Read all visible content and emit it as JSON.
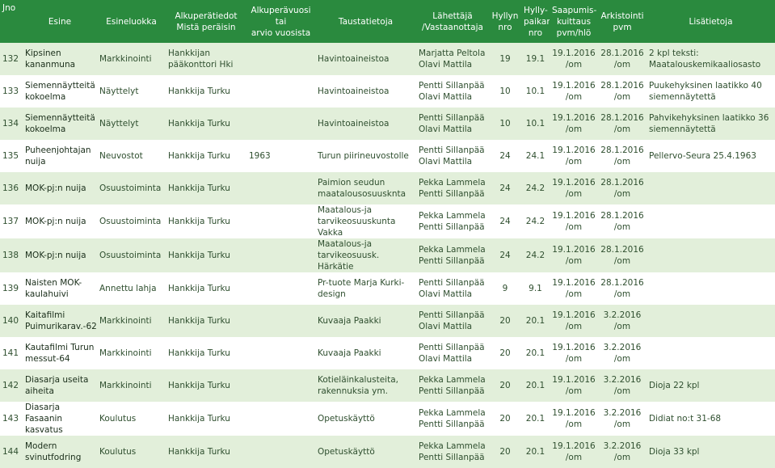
{
  "table": {
    "header": [
      "Jno",
      "Esine",
      "Esineluokka",
      "Alkuperätiedot\nMistä peräisin",
      "Alkuperävuosi tai\narvio vuosista",
      "Taustatietoja",
      "Lähettäjä\n/Vastaanottaja",
      "Hyllyn\nnro",
      "Hylly-\npaikan\nnro",
      "Saapumis-\nkuittaus\npvm/hlö",
      "Arkistointi\npvm",
      "Lisätietoja"
    ],
    "rows": [
      [
        132,
        "Kipsinen\nkananmuna",
        "Markkinointi",
        "Hankkijan\npääkonttori Hki",
        null,
        "Havintoaineistoa",
        "Marjatta Peltola\nOlavi Mattila",
        19,
        "19.1",
        "19.1.2016\n/om",
        "28.1.2016\n/om",
        "2 kpl teksti:\nMaatalouskemikaaliosasto"
      ],
      [
        133,
        "Siemennäytteitä\nkokoelma",
        "Näyttelyt",
        "Hankkija Turku",
        null,
        "Havintoaineistoa",
        "Pentti Sillanpää\nOlavi Mattila",
        10,
        "10.1",
        "19.1.2016\n/om",
        "28.1.2016\n/om",
        "Puukehyksinen laatikko 40\nsiemennäytettä"
      ],
      [
        134,
        "Siemennäytteitä\nkokoelma",
        "Näyttelyt",
        "Hankkija Turku",
        null,
        "Havintoaineistoa",
        "Pentti Sillanpää\nOlavi Mattila",
        10,
        "10.1",
        "19.1.2016\n/om",
        "28.1.2016\n/om",
        "Pahvikehyksinen laatikko 36\nsiemennäytettä"
      ],
      [
        135,
        "Puheenjohtajan\nnuija",
        "Neuvostot",
        "Hankkija Turku",
        1963,
        "Turun piirineuvostolle",
        "Pentti Sillanpää\nOlavi Mattila",
        24,
        "24.1",
        "19.1.2016\n/om",
        "28.1.2016\n/om",
        "Pellervo-Seura 25.4.1963"
      ],
      [
        136,
        "MOK-pj:n nuija",
        "Osuustoiminta",
        "Hankkija Turku",
        null,
        "Paimion seudun\nmaatalousosuusknta",
        "Pekka Lammela\nPentti Sillanpää",
        24,
        "24.2",
        "19.1.2016\n/om",
        "28.1.2016\n/om",
        null
      ],
      [
        137,
        "MOK-pj:n nuija",
        "Osuustoiminta",
        "Hankkija Turku",
        null,
        "Maatalous-ja\ntarvikeosuuskunta Vakka",
        "Pekka Lammela\nPentti Sillanpää",
        24,
        "24.2",
        "19.1.2016\n/om",
        "28.1.2016\n/om",
        null
      ],
      [
        138,
        "MOK-pj:n nuija",
        "Osuustoiminta",
        "Hankkija Turku",
        null,
        "Maatalous-ja\ntarvikeosuusk. Härkätie",
        "Pekka Lammela\nPentti Sillanpää",
        24,
        "24.2",
        "19.1.2016\n/om",
        "28.1.2016\n/om",
        null
      ],
      [
        139,
        "Naisten MOK-\nkaulahuivi",
        "Annettu lahja",
        "Hankkija Turku",
        null,
        "Pr-tuote Marja Kurki-\ndesign",
        "Pentti Sillanpää\nOlavi Mattila",
        9,
        "9.1",
        "19.1.2016\n/om",
        "28.1.2016\n/om",
        null
      ],
      [
        140,
        "Kaitafilmi\nPuimurikarav.-62",
        "Markkinointi",
        "Hankkija Turku",
        null,
        "Kuvaaja Paakki",
        "Pentti Sillanpää\nOlavi Mattila",
        20,
        "20.1",
        "19.1.2016\n/om",
        "3.2.2016\n/om",
        null
      ],
      [
        141,
        "Kautafilmi Turun\nmessut-64",
        "Markkinointi",
        "Hankkija Turku",
        null,
        "Kuvaaja Paakki",
        "Pentti Sillanpää\nOlavi Mattila",
        20,
        "20.1",
        "19.1.2016\n/om",
        "3.2.2016\n/om",
        null
      ],
      [
        142,
        "Diasarja useita\naiheita",
        "Markkinointi",
        "Hankkija Turku",
        null,
        "Kotieläinkalusteita,\nrakennuksia ym.",
        "Pekka Lammela\nPentti Sillanpää",
        20,
        "20.1",
        "19.1.2016\n/om",
        "3.2.2016\n/om",
        "Dioja 22 kpl"
      ],
      [
        143,
        "Diasarja Fasaanin\nkasvatus",
        "Koulutus",
        "Hankkija Turku",
        null,
        "Opetuskäyttö",
        "Pekka Lammela\nPentti Sillanpää",
        20,
        "20.1",
        "19.1.2016\n/om",
        "3.2.2016\n/om",
        "Didiat no:t 31-68"
      ],
      [
        144,
        "Modern\nsvinutfodring",
        "Koulutus",
        "Hankkija Turku",
        null,
        "Opetuskäyttö",
        "Pekka Lammela\nPentti Sillanpää",
        20,
        "20.1",
        "19.1.2016\n/om",
        "3.2.2016\n/om",
        "Dioja 33 kpl"
      ]
    ]
  }
}
